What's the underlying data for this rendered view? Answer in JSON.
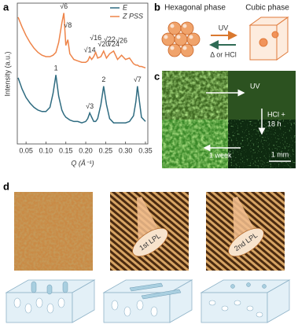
{
  "chart_data": {
    "type": "line",
    "label": "a",
    "xlabel": "Q (Å⁻¹)",
    "ylabel": "Intensity (a.u.)",
    "x": [
      0.03,
      0.04,
      0.05,
      0.06,
      0.07,
      0.08,
      0.09,
      0.1,
      0.11,
      0.118,
      0.125,
      0.132,
      0.14,
      0.145,
      0.15,
      0.155,
      0.16,
      0.17,
      0.18,
      0.19,
      0.2,
      0.205,
      0.21,
      0.215,
      0.22,
      0.225,
      0.23,
      0.238,
      0.245,
      0.252,
      0.26,
      0.27,
      0.28,
      0.29,
      0.3,
      0.31,
      0.32,
      0.326,
      0.33,
      0.335,
      0.34,
      0.35
    ],
    "series": [
      {
        "name": "E",
        "color": "#2e6b80",
        "values": [
          4.7,
          3.9,
          3.3,
          2.9,
          2.6,
          2.4,
          2.3,
          2.3,
          2.6,
          3.6,
          4.9,
          3.4,
          2.4,
          2.1,
          1.9,
          1.8,
          1.7,
          1.6,
          1.6,
          1.5,
          1.6,
          1.8,
          2.2,
          1.9,
          1.6,
          1.6,
          1.8,
          2.8,
          4.1,
          2.8,
          1.8,
          1.5,
          1.5,
          1.5,
          1.5,
          1.6,
          2.0,
          3.0,
          4.1,
          3.0,
          1.9,
          1.6
        ],
        "peak_labels": [
          {
            "text": "1",
            "x": 0.125
          },
          {
            "text": "√3",
            "x": 0.21
          },
          {
            "text": "2",
            "x": 0.245
          },
          {
            "text": "√7",
            "x": 0.33
          }
        ]
      },
      {
        "name": "Z PSS",
        "color": "#ee8449",
        "values": [
          9.0,
          8.3,
          7.7,
          7.2,
          6.8,
          6.5,
          6.3,
          6.2,
          6.2,
          6.3,
          6.5,
          7.2,
          8.6,
          9.3,
          7.0,
          7.4,
          6.4,
          6.0,
          5.9,
          5.8,
          5.8,
          5.9,
          6.2,
          6.0,
          6.2,
          6.5,
          6.1,
          6.2,
          6.6,
          6.1,
          6.4,
          6.6,
          6.0,
          6.3,
          6.0,
          6.1,
          5.7,
          5.6,
          5.6,
          5.5,
          5.5,
          5.4
        ],
        "peak_labels": [
          {
            "text": "√6",
            "x": 0.145
          },
          {
            "text": "√8",
            "x": 0.155
          },
          {
            "text": "√14",
            "x": 0.21
          },
          {
            "text": "√16",
            "x": 0.225
          },
          {
            "text": "√20",
            "x": 0.245
          },
          {
            "text": "√22",
            "x": 0.26
          },
          {
            "text": "√24",
            "x": 0.27
          },
          {
            "text": "√26",
            "x": 0.29
          }
        ]
      }
    ],
    "xlim": [
      0.028,
      0.356
    ],
    "ylim": [
      0,
      10
    ],
    "xticks": [
      0.05,
      {
        "value": 0.1,
        "label": "0.10"
      },
      0.15,
      {
        "value": 0.2,
        "label": "0.20"
      },
      0.25,
      {
        "value": 0.3,
        "label": "0.30"
      },
      0.35
    ],
    "legend": "top-right"
  },
  "panel_b": {
    "label": "b",
    "left_title": "Hexagonal phase",
    "right_title": "Cubic phase",
    "forward": "UV",
    "reverse": "Δ or HCl"
  },
  "panel_c": {
    "label": "c",
    "uv": "UV",
    "hcl": "HCl +",
    "hcl_time": "18 h",
    "week": "1 week",
    "scale_bar": "1 mm"
  },
  "panel_d": {
    "label": "d",
    "lens_1": "1st LPL",
    "lens_2": "2nd LPL"
  }
}
